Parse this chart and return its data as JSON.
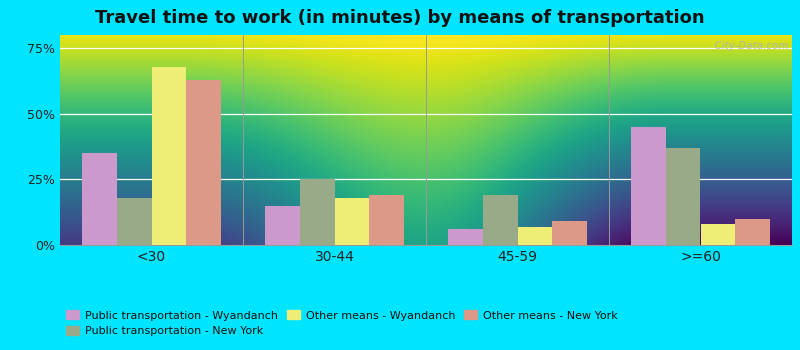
{
  "title": "Travel time to work (in minutes) by means of transportation",
  "categories": [
    "<30",
    "30-44",
    "45-59",
    ">=60"
  ],
  "series_order": [
    "Public transportation - Wyandanch",
    "Public transportation - New York",
    "Other means - Wyandanch",
    "Other means - New York"
  ],
  "series": {
    "Public transportation - Wyandanch": [
      35,
      15,
      6,
      45
    ],
    "Public transportation - New York": [
      18,
      25,
      19,
      37
    ],
    "Other means - Wyandanch": [
      68,
      18,
      7,
      8
    ],
    "Other means - New York": [
      63,
      19,
      9,
      10
    ]
  },
  "colors": {
    "Public transportation - Wyandanch": "#cc99cc",
    "Public transportation - New York": "#99aa88",
    "Other means - Wyandanch": "#eeee77",
    "Other means - New York": "#dd9988"
  },
  "legend_order": [
    "Public transportation - Wyandanch",
    "Public transportation - New York",
    "Other means - Wyandanch",
    "Other means - New York"
  ],
  "ylim": [
    0,
    80
  ],
  "yticks": [
    0,
    25,
    50,
    75
  ],
  "ytick_labels": [
    "0%",
    "25%",
    "50%",
    "75%"
  ],
  "bg_top_color": "#f8faf8",
  "bg_bottom_color": "#c8ddc0",
  "outer_background": "#00e5ff",
  "title_fontsize": 13,
  "watermark": "  City-Data.com"
}
